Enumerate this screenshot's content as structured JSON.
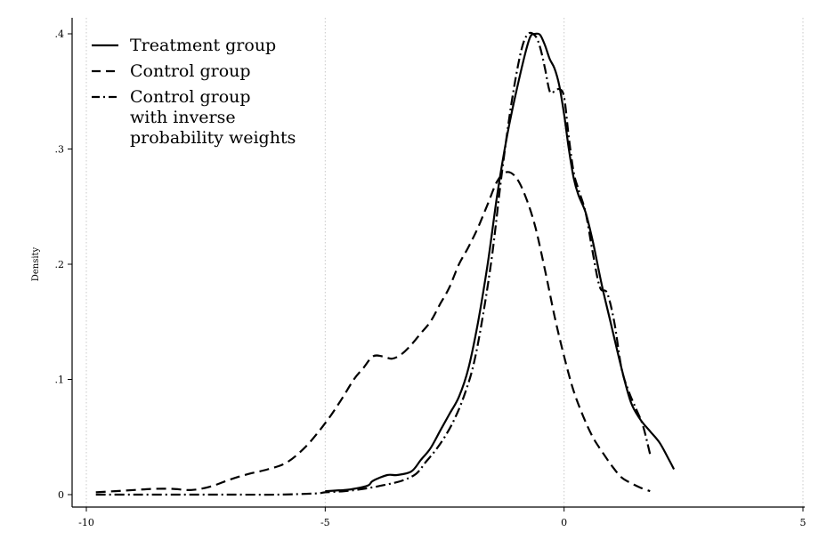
{
  "chart_data": {
    "type": "line",
    "title": "",
    "xlabel": "",
    "ylabel": "Density",
    "xlim": [
      -10,
      5
    ],
    "ylim": [
      0,
      0.4
    ],
    "x_ticks": [
      -10,
      -5,
      0,
      5
    ],
    "x_tick_labels": [
      "-10",
      "-5",
      "0",
      "5"
    ],
    "y_ticks": [
      0,
      0.1,
      0.2,
      0.3,
      0.4
    ],
    "y_tick_labels": [
      "0",
      ".1",
      ".2",
      ".3",
      ".4"
    ],
    "grid": "vertical dotted at x ticks",
    "legend_position": "top-left",
    "legend": [
      {
        "series": 0,
        "lines": [
          "Treatment group"
        ]
      },
      {
        "series": 1,
        "lines": [
          "Control group"
        ]
      },
      {
        "series": 2,
        "lines": [
          "Control group",
          "with inverse",
          "probability weights"
        ]
      }
    ],
    "series": [
      {
        "style": "solid",
        "color": "#000000",
        "x": [
          -5,
          -4.6,
          -4.4,
          -4.1,
          -4,
          -3.7,
          -3.5,
          -3.2,
          -3,
          -2.8,
          -2.6,
          -2.4,
          -2.2,
          -2,
          -1.8,
          -1.6,
          -1.4,
          -1.2,
          -1,
          -0.8,
          -0.7,
          -0.6,
          -0.5,
          -0.4,
          -0.3,
          -0.2,
          -0.1,
          0,
          0.1,
          0.2,
          0.3,
          0.45,
          0.6,
          0.8,
          1,
          1.2,
          1.4,
          1.6,
          1.8,
          2,
          2.2,
          2.3
        ],
        "y": [
          0.003,
          0.004,
          0.005,
          0.008,
          0.012,
          0.017,
          0.017,
          0.02,
          0.03,
          0.04,
          0.055,
          0.07,
          0.085,
          0.11,
          0.15,
          0.2,
          0.26,
          0.31,
          0.35,
          0.385,
          0.398,
          0.4,
          0.399,
          0.39,
          0.378,
          0.37,
          0.355,
          0.33,
          0.3,
          0.275,
          0.26,
          0.245,
          0.22,
          0.18,
          0.145,
          0.11,
          0.08,
          0.065,
          0.055,
          0.045,
          0.03,
          0.022
        ]
      },
      {
        "style": "dashed",
        "color": "#000000",
        "x": [
          -9.8,
          -9.4,
          -9,
          -8.6,
          -8.2,
          -7.8,
          -7.4,
          -7,
          -6.6,
          -6.2,
          -5.8,
          -5.4,
          -5,
          -4.7,
          -4.4,
          -4.2,
          -4,
          -3.8,
          -3.6,
          -3.4,
          -3.2,
          -3,
          -2.8,
          -2.6,
          -2.4,
          -2.2,
          -2,
          -1.8,
          -1.6,
          -1.4,
          -1.2,
          -1,
          -0.8,
          -0.6,
          -0.4,
          -0.2,
          0,
          0.2,
          0.4,
          0.6,
          0.8,
          1,
          1.2,
          1.4,
          1.6,
          1.8
        ],
        "y": [
          0.002,
          0.003,
          0.004,
          0.005,
          0.005,
          0.004,
          0.007,
          0.013,
          0.018,
          0.022,
          0.028,
          0.042,
          0.062,
          0.08,
          0.1,
          0.11,
          0.12,
          0.12,
          0.118,
          0.122,
          0.13,
          0.14,
          0.15,
          0.165,
          0.18,
          0.2,
          0.215,
          0.232,
          0.252,
          0.272,
          0.28,
          0.275,
          0.258,
          0.232,
          0.195,
          0.155,
          0.12,
          0.09,
          0.068,
          0.05,
          0.037,
          0.025,
          0.015,
          0.01,
          0.006,
          0.003
        ]
      },
      {
        "style": "dashdot",
        "color": "#000000",
        "x": [
          -9.8,
          -9,
          -8,
          -7,
          -6,
          -5.2,
          -5,
          -4.6,
          -4.2,
          -3.8,
          -3.4,
          -3.1,
          -2.9,
          -2.7,
          -2.5,
          -2.3,
          -2.1,
          -1.9,
          -1.7,
          -1.5,
          -1.3,
          -1.1,
          -0.9,
          -0.75,
          -0.6,
          -0.5,
          -0.4,
          -0.3,
          -0.2,
          -0.1,
          0,
          0.1,
          0.2,
          0.3,
          0.45,
          0.6,
          0.75,
          0.9,
          1.05,
          1.2,
          1.35,
          1.5,
          1.65,
          1.8
        ],
        "y": [
          0.0,
          0.0,
          0.0,
          0.0,
          0.0,
          0.001,
          0.002,
          0.003,
          0.005,
          0.008,
          0.012,
          0.018,
          0.028,
          0.038,
          0.05,
          0.065,
          0.085,
          0.112,
          0.155,
          0.21,
          0.28,
          0.34,
          0.385,
          0.4,
          0.398,
          0.388,
          0.37,
          0.35,
          0.35,
          0.352,
          0.345,
          0.31,
          0.28,
          0.265,
          0.245,
          0.21,
          0.18,
          0.175,
          0.15,
          0.11,
          0.09,
          0.075,
          0.06,
          0.035
        ]
      }
    ]
  }
}
